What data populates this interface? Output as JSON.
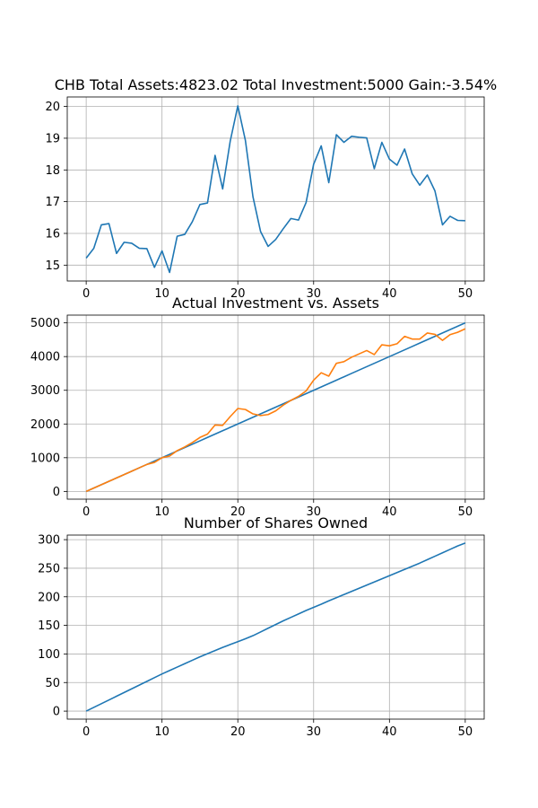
{
  "colors": {
    "series_blue": "#1f77b4",
    "series_orange": "#ff7f0e",
    "grid": "#b0b0b0"
  },
  "chart_data": [
    {
      "type": "line",
      "title": "CHB Total Assets:4823.02  Total Investment:5000  Gain:-3.54%",
      "xlabel": "",
      "ylabel": "",
      "grid": true,
      "xlim": [
        -2.5,
        52.5
      ],
      "ylim": [
        14.5,
        20.3
      ],
      "xticks": [
        0,
        10,
        20,
        30,
        40,
        50
      ],
      "yticks": [
        15,
        16,
        17,
        18,
        19,
        20
      ],
      "x": [
        0,
        1,
        2,
        3,
        4,
        5,
        6,
        7,
        8,
        9,
        10,
        11,
        12,
        13,
        14,
        15,
        16,
        17,
        18,
        19,
        20,
        21,
        22,
        23,
        24,
        25,
        26,
        27,
        28,
        29,
        30,
        31,
        32,
        33,
        34,
        35,
        36,
        37,
        38,
        39,
        40,
        41,
        42,
        43,
        44,
        45,
        46,
        47,
        48,
        49,
        50
      ],
      "series": [
        {
          "values": [
            15.22,
            15.53,
            16.27,
            16.31,
            15.37,
            15.72,
            15.69,
            15.53,
            15.52,
            14.93,
            15.45,
            14.77,
            15.91,
            15.97,
            16.37,
            16.91,
            16.96,
            18.46,
            17.4,
            18.91,
            20.02,
            18.93,
            17.15,
            16.06,
            15.59,
            15.81,
            16.15,
            16.47,
            16.42,
            16.97,
            18.18,
            18.76,
            17.6,
            19.11,
            18.87,
            19.06,
            19.03,
            19.01,
            18.04,
            18.87,
            18.34,
            18.15,
            18.66,
            17.88,
            17.52,
            17.84,
            17.34,
            16.27,
            16.54,
            16.41,
            16.4
          ]
        }
      ]
    },
    {
      "type": "line",
      "title": "Actual Investment vs. Assets",
      "xlabel": "",
      "ylabel": "",
      "grid": true,
      "xlim": [
        -2.5,
        52.5
      ],
      "ylim": [
        -230,
        5230
      ],
      "xticks": [
        0,
        10,
        20,
        30,
        40,
        50
      ],
      "yticks": [
        0,
        1000,
        2000,
        3000,
        4000,
        5000
      ],
      "x": [
        0,
        1,
        2,
        3,
        4,
        5,
        6,
        7,
        8,
        9,
        10,
        11,
        12,
        13,
        14,
        15,
        16,
        17,
        18,
        19,
        20,
        21,
        22,
        23,
        24,
        25,
        26,
        27,
        28,
        29,
        30,
        31,
        32,
        33,
        34,
        35,
        36,
        37,
        38,
        39,
        40,
        41,
        42,
        43,
        44,
        45,
        46,
        47,
        48,
        49,
        50
      ],
      "series": [
        {
          "values": [
            0,
            100,
            200,
            300,
            400,
            500,
            600,
            700,
            800,
            900,
            1000,
            1100,
            1200,
            1300,
            1400,
            1500,
            1600,
            1700,
            1800,
            1900,
            2000,
            2100,
            2200,
            2300,
            2400,
            2500,
            2600,
            2700,
            2800,
            2900,
            3000,
            3100,
            3200,
            3300,
            3400,
            3500,
            3600,
            3700,
            3800,
            3900,
            4000,
            4100,
            4200,
            4300,
            4400,
            4500,
            4600,
            4700,
            4800,
            4900,
            5000
          ]
        },
        {
          "values": [
            0,
            100,
            200,
            300,
            400,
            500,
            600,
            700,
            800,
            860,
            1000,
            1050,
            1210,
            1320,
            1450,
            1600,
            1700,
            1970,
            1960,
            2220,
            2460,
            2430,
            2300,
            2250,
            2280,
            2390,
            2560,
            2700,
            2820,
            2980,
            3300,
            3520,
            3420,
            3800,
            3850,
            3980,
            4080,
            4180,
            4060,
            4350,
            4320,
            4380,
            4600,
            4520,
            4520,
            4700,
            4660,
            4480,
            4650,
            4720,
            4823
          ]
        }
      ]
    },
    {
      "type": "line",
      "title": "Number of Shares Owned",
      "xlabel": "",
      "ylabel": "",
      "grid": true,
      "xlim": [
        -2.5,
        52.5
      ],
      "ylim": [
        -14,
        308
      ],
      "xticks": [
        0,
        10,
        20,
        30,
        40,
        50
      ],
      "yticks": [
        0,
        50,
        100,
        150,
        200,
        250,
        300
      ],
      "x": [
        0,
        1,
        2,
        3,
        4,
        5,
        6,
        7,
        8,
        9,
        10,
        11,
        12,
        13,
        14,
        15,
        16,
        17,
        18,
        19,
        20,
        21,
        22,
        23,
        24,
        25,
        26,
        27,
        28,
        29,
        30,
        31,
        32,
        33,
        34,
        35,
        36,
        37,
        38,
        39,
        40,
        41,
        42,
        43,
        44,
        45,
        46,
        47,
        48,
        49,
        50
      ],
      "series": [
        {
          "values": [
            0,
            6.5,
            13,
            19.5,
            26,
            32.5,
            39,
            45.5,
            52,
            58.5,
            65,
            71,
            77,
            83,
            89,
            95,
            100.5,
            106,
            111.5,
            116.5,
            121.5,
            126.5,
            132,
            138.5,
            145,
            151.5,
            158,
            164,
            170,
            176,
            181.5,
            187,
            193,
            198.5,
            204,
            209.5,
            215,
            220.5,
            226,
            231.5,
            237,
            242.5,
            248,
            253.5,
            259,
            265,
            271,
            277,
            283,
            289,
            294
          ]
        }
      ]
    }
  ]
}
